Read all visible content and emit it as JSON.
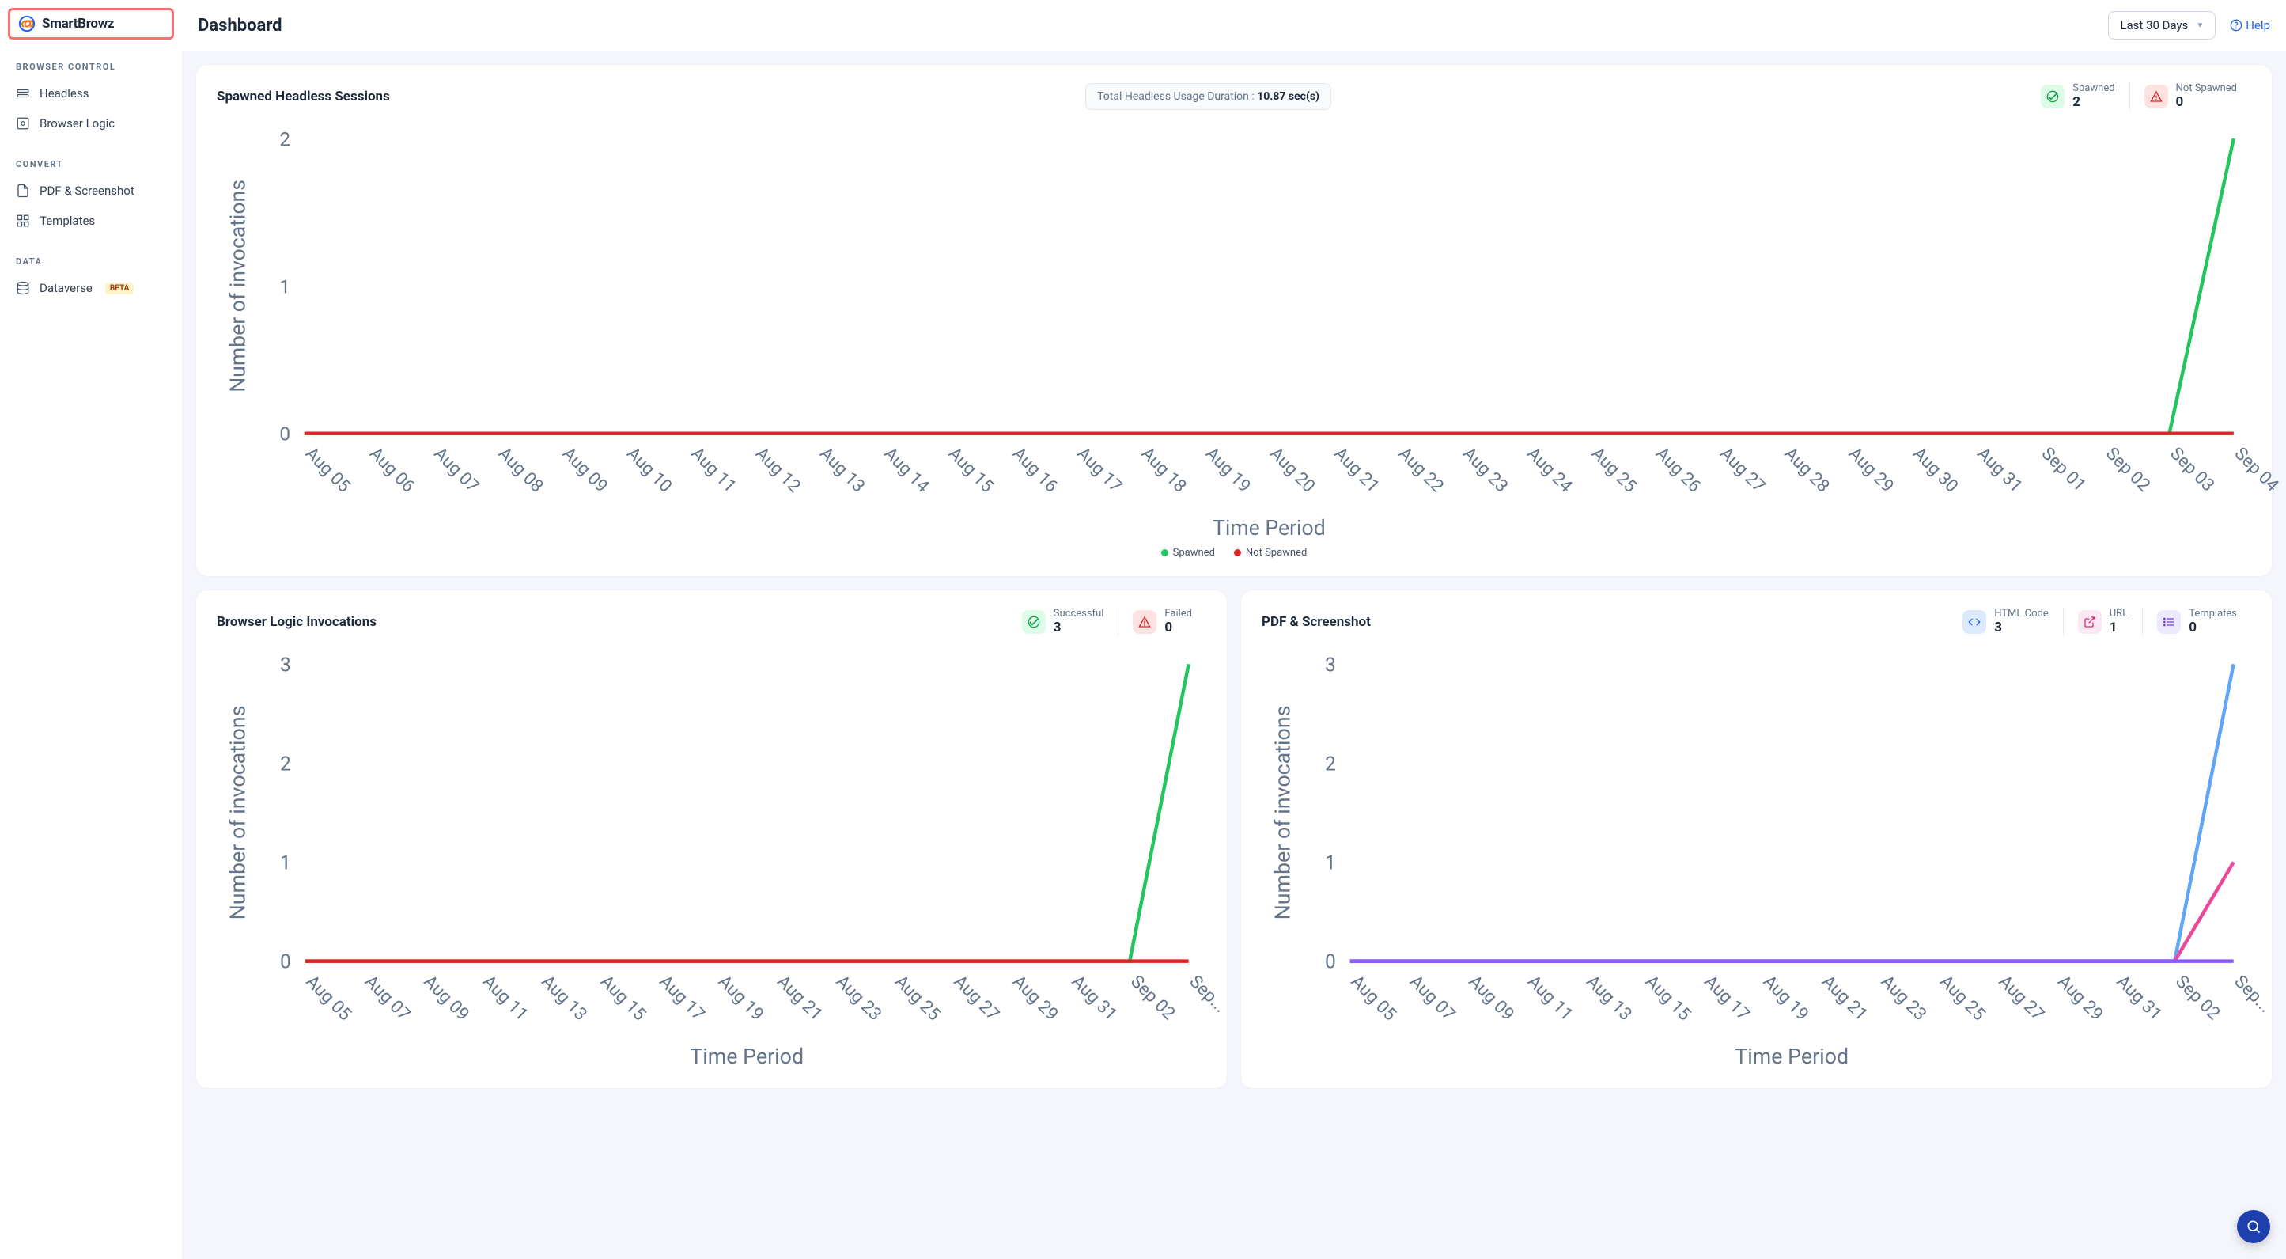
{
  "brand": {
    "name": "SmartBrowz"
  },
  "sidebar": {
    "sections": [
      {
        "label": "BROWSER CONTROL",
        "items": [
          {
            "label": "Headless",
            "icon": "headless"
          },
          {
            "label": "Browser Logic",
            "icon": "browser-logic"
          }
        ]
      },
      {
        "label": "CONVERT",
        "items": [
          {
            "label": "PDF & Screenshot",
            "icon": "pdf"
          },
          {
            "label": "Templates",
            "icon": "templates"
          }
        ]
      },
      {
        "label": "DATA",
        "items": [
          {
            "label": "Dataverse",
            "icon": "dataverse",
            "badge": "BETA"
          }
        ]
      }
    ]
  },
  "topbar": {
    "title": "Dashboard",
    "period": "Last 30 Days",
    "help": "Help"
  },
  "cards": {
    "sessions": {
      "title": "Spawned Headless Sessions",
      "usage_prefix": "Total Headless Usage Duration : ",
      "usage_value": "10.87 sec(s)",
      "stats": [
        {
          "label": "Spawned",
          "value": "2",
          "icon": "check",
          "color": "green"
        },
        {
          "label": "Not Spawned",
          "value": "0",
          "icon": "warn",
          "color": "red"
        }
      ],
      "chart": {
        "ylabel": "Number of invocations",
        "xlabel": "Time Period",
        "ylim": [
          0,
          2
        ],
        "yticks": [
          0,
          1,
          2
        ],
        "categories": [
          "Aug 05",
          "Aug 06",
          "Aug 07",
          "Aug 08",
          "Aug 09",
          "Aug 10",
          "Aug 11",
          "Aug 12",
          "Aug 13",
          "Aug 14",
          "Aug 15",
          "Aug 16",
          "Aug 17",
          "Aug 18",
          "Aug 19",
          "Aug 20",
          "Aug 21",
          "Aug 22",
          "Aug 23",
          "Aug 24",
          "Aug 25",
          "Aug 26",
          "Aug 27",
          "Aug 28",
          "Aug 29",
          "Aug 30",
          "Aug 31",
          "Sep 01",
          "Sep 02",
          "Sep 03",
          "Sep 04"
        ],
        "series": [
          {
            "name": "Spawned",
            "color": "#22c55e",
            "values": [
              0,
              0,
              0,
              0,
              0,
              0,
              0,
              0,
              0,
              0,
              0,
              0,
              0,
              0,
              0,
              0,
              0,
              0,
              0,
              0,
              0,
              0,
              0,
              0,
              0,
              0,
              0,
              0,
              0,
              0,
              2
            ]
          },
          {
            "name": "Not Spawned",
            "color": "#dc2626",
            "values": [
              0,
              0,
              0,
              0,
              0,
              0,
              0,
              0,
              0,
              0,
              0,
              0,
              0,
              0,
              0,
              0,
              0,
              0,
              0,
              0,
              0,
              0,
              0,
              0,
              0,
              0,
              0,
              0,
              0,
              0,
              0
            ]
          }
        ],
        "legend": [
          {
            "label": "Spawned",
            "color": "#22c55e"
          },
          {
            "label": "Not Spawned",
            "color": "#dc2626"
          }
        ]
      }
    },
    "logic": {
      "title": "Browser Logic Invocations",
      "stats": [
        {
          "label": "Successful",
          "value": "3",
          "icon": "check",
          "color": "green"
        },
        {
          "label": "Failed",
          "value": "0",
          "icon": "warn",
          "color": "red"
        }
      ],
      "chart": {
        "ylabel": "Number of invocations",
        "xlabel": "Time Period",
        "ylim": [
          0,
          3
        ],
        "yticks": [
          0,
          1,
          2,
          3
        ],
        "categories": [
          "Aug 05",
          "Aug 07",
          "Aug 09",
          "Aug 11",
          "Aug 13",
          "Aug 15",
          "Aug 17",
          "Aug 19",
          "Aug 21",
          "Aug 23",
          "Aug 25",
          "Aug 27",
          "Aug 29",
          "Aug 31",
          "Sep 02",
          "Sep..."
        ],
        "series": [
          {
            "name": "Successful",
            "color": "#22c55e",
            "values": [
              0,
              0,
              0,
              0,
              0,
              0,
              0,
              0,
              0,
              0,
              0,
              0,
              0,
              0,
              0,
              3
            ]
          },
          {
            "name": "Failed",
            "color": "#dc2626",
            "values": [
              0,
              0,
              0,
              0,
              0,
              0,
              0,
              0,
              0,
              0,
              0,
              0,
              0,
              0,
              0,
              0
            ]
          }
        ]
      }
    },
    "pdf": {
      "title": "PDF & Screenshot",
      "stats": [
        {
          "label": "HTML Code",
          "value": "3",
          "icon": "code",
          "color": "blue"
        },
        {
          "label": "URL",
          "value": "1",
          "icon": "link",
          "color": "pink"
        },
        {
          "label": "Templates",
          "value": "0",
          "icon": "list",
          "color": "purple"
        }
      ],
      "chart": {
        "ylabel": "Number of invocations",
        "xlabel": "Time Period",
        "ylim": [
          0,
          3
        ],
        "yticks": [
          0,
          1,
          2,
          3
        ],
        "categories": [
          "Aug 05",
          "Aug 07",
          "Aug 09",
          "Aug 11",
          "Aug 13",
          "Aug 15",
          "Aug 17",
          "Aug 19",
          "Aug 21",
          "Aug 23",
          "Aug 25",
          "Aug 27",
          "Aug 29",
          "Aug 31",
          "Sep 02",
          "Sep..."
        ],
        "series": [
          {
            "name": "HTML Code",
            "color": "#60a5fa",
            "values": [
              0,
              0,
              0,
              0,
              0,
              0,
              0,
              0,
              0,
              0,
              0,
              0,
              0,
              0,
              0,
              3
            ]
          },
          {
            "name": "URL",
            "color": "#ec4899",
            "values": [
              0,
              0,
              0,
              0,
              0,
              0,
              0,
              0,
              0,
              0,
              0,
              0,
              0,
              0,
              0,
              1
            ]
          },
          {
            "name": "Templates",
            "color": "#8b5cf6",
            "values": [
              0,
              0,
              0,
              0,
              0,
              0,
              0,
              0,
              0,
              0,
              0,
              0,
              0,
              0,
              0,
              0
            ]
          }
        ]
      }
    }
  },
  "colors": {
    "grid": "#e2e8f0",
    "axis_text": "#64748b"
  }
}
